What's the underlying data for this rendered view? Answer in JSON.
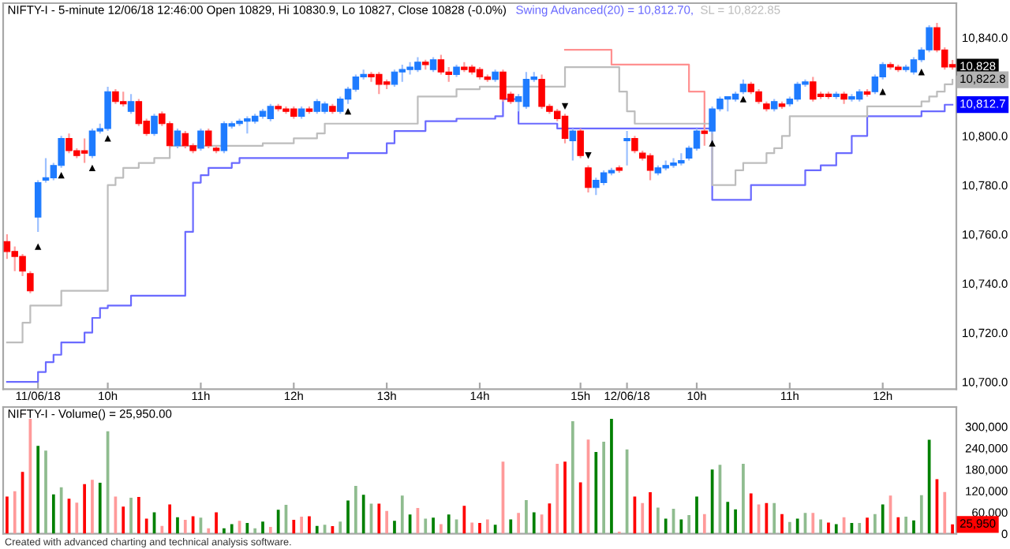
{
  "chart_data": [
    {
      "type": "candlestick",
      "title": "NIFTY-I - 5-minute 12/06/18 12:46:00 Open 10829, Hi 10830.9, Lo 10827, Close 10828 (-0.0%)",
      "categories": [
        null,
        null,
        null,
        null,
        "11/06/18",
        null,
        null,
        null,
        null,
        null,
        null,
        null,
        null,
        "10h",
        null,
        null,
        null,
        null,
        null,
        null,
        null,
        null,
        null,
        null,
        null,
        "11h",
        null,
        null,
        null,
        null,
        null,
        null,
        null,
        null,
        null,
        null,
        null,
        "12h",
        null,
        null,
        null,
        null,
        null,
        null,
        null,
        null,
        null,
        null,
        null,
        "13h",
        null,
        null,
        null,
        null,
        null,
        null,
        null,
        null,
        null,
        null,
        null,
        "14h",
        null,
        null,
        null,
        null,
        null,
        null,
        null,
        null,
        null,
        null,
        null,
        null,
        "15h",
        null,
        null,
        null,
        null,
        null,
        "12/06/18",
        null,
        null,
        null,
        null,
        null,
        null,
        null,
        null,
        "10h",
        null,
        null,
        null,
        null,
        null,
        null,
        null,
        null,
        null,
        null,
        null,
        "11h",
        null,
        null,
        null,
        null,
        null,
        null,
        null,
        null,
        null,
        null,
        null,
        "12h",
        null,
        null,
        null,
        null,
        null,
        null,
        null,
        null,
        null
      ],
      "ohlc": [
        [
          10757,
          10760,
          10750,
          10753
        ],
        [
          10753,
          10755,
          10745,
          10751
        ],
        [
          10751,
          10752,
          10743,
          10745
        ],
        [
          10744,
          10745,
          10736,
          10737
        ],
        [
          10767,
          10782,
          10761,
          10781
        ],
        [
          10782,
          10791,
          10781,
          10783
        ],
        [
          10783,
          10789,
          10782,
          10788
        ],
        [
          10788,
          10800,
          10787,
          10799
        ],
        [
          10799,
          10801,
          10793,
          10794
        ],
        [
          10794,
          10795,
          10791,
          10792
        ],
        [
          10794,
          10799,
          10789,
          10793
        ],
        [
          10792,
          10803,
          10791,
          10802
        ],
        [
          10802,
          10805,
          10801,
          10803
        ],
        [
          10803,
          10820,
          10802,
          10818
        ],
        [
          10818,
          10819,
          10813,
          10814
        ],
        [
          10814,
          10818,
          10812,
          10813
        ],
        [
          10810,
          10817,
          10809,
          10814
        ],
        [
          10814,
          10815,
          10804,
          10805
        ],
        [
          10806,
          10807,
          10800,
          10801
        ],
        [
          10801,
          10809,
          10800,
          10808
        ],
        [
          10809,
          10810,
          10804,
          10805
        ],
        [
          10805,
          10806,
          10795,
          10796
        ],
        [
          10796,
          10803,
          10795,
          10802
        ],
        [
          10801,
          10802,
          10795,
          10796
        ],
        [
          10796,
          10797,
          10793,
          10794
        ],
        [
          10795,
          10803,
          10794,
          10802
        ],
        [
          10802,
          10803,
          10795,
          10796
        ],
        [
          10795,
          10796,
          10793,
          10794
        ],
        [
          10794,
          10806,
          10793,
          10805
        ],
        [
          10804,
          10806,
          10803,
          10805
        ],
        [
          10805,
          10807,
          10804,
          10806
        ],
        [
          10806,
          10808,
          10801,
          10807
        ],
        [
          10806,
          10809,
          10805,
          10808
        ],
        [
          10808,
          10811,
          10807,
          10810
        ],
        [
          10807,
          10813,
          10806,
          10812
        ],
        [
          10812,
          10813,
          10810,
          10811
        ],
        [
          10811,
          10812,
          10809,
          10810
        ],
        [
          10811,
          10812,
          10807,
          10808
        ],
        [
          10808,
          10812,
          10807,
          10811
        ],
        [
          10811,
          10812,
          10809,
          10810
        ],
        [
          10810,
          10815,
          10809,
          10814
        ],
        [
          10810,
          10814,
          10809,
          10813
        ],
        [
          10812,
          10813,
          10809,
          10810
        ],
        [
          10810,
          10816,
          10809,
          10815
        ],
        [
          10815,
          10820,
          10813,
          10819
        ],
        [
          10819,
          10825,
          10818,
          10824
        ],
        [
          10824,
          10827,
          10823,
          10825
        ],
        [
          10825,
          10826,
          10822,
          10824
        ],
        [
          10825,
          10826,
          10817,
          10821
        ],
        [
          10822,
          10823,
          10819,
          10821
        ],
        [
          10821,
          10827,
          10820,
          10826
        ],
        [
          10826,
          10829,
          10822,
          10827
        ],
        [
          10827,
          10830,
          10825,
          10828
        ],
        [
          10827,
          10832,
          10826,
          10830
        ],
        [
          10830,
          10831,
          10827,
          10829
        ],
        [
          10827,
          10832,
          10826,
          10831
        ],
        [
          10831,
          10833,
          10825,
          10826
        ],
        [
          10826,
          10828,
          10822,
          10825
        ],
        [
          10825,
          10829,
          10824,
          10828
        ],
        [
          10828,
          10830,
          10826,
          10827
        ],
        [
          10828,
          10829,
          10825,
          10826
        ],
        [
          10827,
          10828,
          10823,
          10824
        ],
        [
          10824,
          10825,
          10822,
          10823
        ],
        [
          10823,
          10827,
          10822,
          10826
        ],
        [
          10826,
          10827,
          10814,
          10815
        ],
        [
          10817,
          10818,
          10813,
          10814
        ],
        [
          10814,
          10817,
          10810,
          10816
        ],
        [
          10812,
          10826,
          10811,
          10823
        ],
        [
          10823,
          10826,
          10822,
          10824
        ],
        [
          10823,
          10825,
          10811,
          10812
        ],
        [
          10812,
          10813,
          10809,
          10810
        ],
        [
          10810,
          10811,
          10806,
          10807
        ],
        [
          10808,
          10809,
          10797,
          10799
        ],
        [
          10798,
          10803,
          10790,
          10802
        ],
        [
          10802,
          10803,
          10791,
          10792
        ],
        [
          10787,
          10788,
          10777,
          10779
        ],
        [
          10779,
          10783,
          10776,
          10782
        ],
        [
          10781,
          10786,
          10780,
          10785
        ],
        [
          10785,
          10787,
          10784,
          10786
        ],
        [
          10787,
          10788,
          10785,
          10786
        ],
        [
          10798,
          10802,
          10788,
          10799
        ],
        [
          10799,
          10800,
          10793,
          10794
        ],
        [
          10793,
          10794,
          10790,
          10791
        ],
        [
          10792,
          10793,
          10782,
          10786
        ],
        [
          10785,
          10788,
          10784,
          10787
        ],
        [
          10787,
          10790,
          10786,
          10788
        ],
        [
          10788,
          10791,
          10787,
          10789
        ],
        [
          10789,
          10793,
          10788,
          10790
        ],
        [
          10791,
          10796,
          10790,
          10795
        ],
        [
          10795,
          10803,
          10794,
          10802
        ],
        [
          10802,
          10804,
          10796,
          10801
        ],
        [
          10802,
          10812,
          10801,
          10811
        ],
        [
          10811,
          10816,
          10810,
          10815
        ],
        [
          10815,
          10816,
          10810,
          10816
        ],
        [
          10815,
          10818,
          10814,
          10817
        ],
        [
          10818,
          10823,
          10817,
          10821
        ],
        [
          10821,
          10822,
          10817,
          10818
        ],
        [
          10818,
          10819,
          10813,
          10814
        ],
        [
          10813,
          10814,
          10810,
          10811
        ],
        [
          10811,
          10815,
          10810,
          10814
        ],
        [
          10813,
          10814,
          10811,
          10812
        ],
        [
          10813,
          10816,
          10812,
          10815
        ],
        [
          10815,
          10822,
          10814,
          10821
        ],
        [
          10821,
          10823,
          10820,
          10822
        ],
        [
          10822,
          10824,
          10814,
          10815
        ],
        [
          10817,
          10818,
          10815,
          10816
        ],
        [
          10817,
          10818,
          10815,
          10816
        ],
        [
          10816,
          10818,
          10815,
          10817
        ],
        [
          10817,
          10818,
          10813,
          10815
        ],
        [
          10815,
          10817,
          10814,
          10816
        ],
        [
          10815,
          10819,
          10814,
          10818
        ],
        [
          10818,
          10819,
          10816,
          10817
        ],
        [
          10818,
          10825,
          10817,
          10824
        ],
        [
          10824,
          10830,
          10823,
          10829
        ],
        [
          10829,
          10830,
          10827,
          10828
        ],
        [
          10828,
          10829,
          10826,
          10827
        ],
        [
          10827,
          10829,
          10826,
          10828
        ],
        [
          10826,
          10832,
          10825,
          10831
        ],
        [
          10831,
          10836,
          10830,
          10835
        ],
        [
          10835,
          10845,
          10834,
          10844
        ],
        [
          10844,
          10846,
          10834,
          10835
        ],
        [
          10835,
          10836,
          10827,
          10828
        ],
        [
          10829,
          10830.9,
          10827,
          10828
        ]
      ],
      "series": [
        {
          "type": "step",
          "color": "#ff9090",
          "values": [
            null,
            null,
            null,
            null,
            null,
            null,
            null,
            null,
            null,
            null,
            null,
            null,
            null,
            null,
            null,
            null,
            null,
            null,
            null,
            null,
            null,
            null,
            null,
            null,
            null,
            null,
            null,
            null,
            null,
            null,
            null,
            null,
            null,
            null,
            null,
            null,
            null,
            null,
            null,
            null,
            null,
            null,
            null,
            null,
            null,
            null,
            null,
            null,
            null,
            null,
            null,
            null,
            null,
            null,
            null,
            null,
            null,
            null,
            null,
            null,
            null,
            null,
            null,
            null,
            null,
            null,
            null,
            null,
            null,
            null,
            null,
            null,
            10835,
            10835,
            10835,
            10835,
            10835,
            10835,
            10829,
            10829,
            10829,
            10829,
            10829,
            10829,
            10829,
            10829,
            10829,
            10829,
            10818,
            10818,
            10803,
            null,
            null,
            null,
            null,
            null,
            null,
            null,
            null,
            null,
            null,
            null,
            null,
            null,
            null,
            null,
            null,
            null,
            null,
            null,
            null,
            null,
            null,
            null,
            null,
            null,
            null,
            null,
            null,
            null,
            null,
            null,
            null
          ]
        },
        {
          "type": "step",
          "name": "Swing Advanced(20) = 10,812.70,",
          "color": "#6a6aff",
          "values": [
            10700,
            10700,
            10700,
            10700,
            10704,
            10708,
            10711,
            10716,
            10716,
            10716,
            10720,
            10726,
            10730,
            10731,
            10731,
            10731,
            10735,
            10735,
            10735,
            10735,
            10735,
            10735,
            10735,
            10761,
            10781,
            10784,
            10787,
            10787,
            10787,
            10789,
            10791,
            10791,
            10791,
            10791,
            10791,
            10791,
            10791,
            10791,
            10791,
            10791,
            10791,
            10791,
            10791,
            10791,
            10793,
            10793,
            10793,
            10793,
            10793,
            10797,
            10802,
            10802,
            10802,
            10802,
            10806,
            10806,
            10806,
            10806,
            10807,
            10807,
            10807,
            10807,
            10807,
            10808,
            10815,
            10815,
            10805,
            10805,
            10805,
            10805,
            10805,
            10803,
            10803,
            10803,
            10803,
            10803,
            10803,
            10803,
            10803,
            10803,
            10803,
            10803,
            10803,
            10803,
            10803,
            10803,
            10803,
            10803,
            10803,
            10803,
            10803,
            10774,
            10774,
            10774,
            10774,
            10774,
            10780,
            10780,
            10780,
            10780,
            10780,
            10780,
            10780,
            10786,
            10786,
            10788,
            10788,
            10793,
            10793,
            10800,
            10800,
            10808,
            10808,
            10808,
            10808,
            10808,
            10808,
            10808,
            10810,
            10810,
            10810,
            10812.7,
            10812.7
          ]
        },
        {
          "type": "step",
          "name": "SL = 10,822.85",
          "color": "#bdbdbd",
          "values": [
            10716,
            10716,
            10724,
            10731,
            10731,
            10731,
            10731,
            10737,
            10737,
            10737,
            10737,
            10737,
            10737,
            10780,
            10783,
            10787,
            10787,
            10789,
            10789,
            10791,
            10791,
            10796,
            10796,
            10796,
            10796,
            10796,
            10796,
            10796,
            10796,
            10796,
            10796,
            10796,
            10796,
            10797,
            10797,
            10797,
            10797,
            10799,
            10799,
            10799,
            10801,
            10805,
            10805,
            10805,
            10805,
            10805,
            10805,
            10805,
            10805,
            10805,
            10805,
            10805,
            10805,
            10816,
            10816,
            10816,
            10816,
            10816,
            10819,
            10819,
            10819,
            10820,
            10820,
            10820,
            10820,
            10820,
            10820,
            10820,
            10820,
            10820,
            10820,
            10820,
            10828,
            10828,
            10828,
            10828,
            10828,
            10828,
            10828,
            10818,
            10810,
            10805,
            10805,
            10805,
            10805,
            10805,
            10805,
            10805,
            10805,
            10805,
            10805,
            10780,
            10780,
            10780,
            10786,
            10789,
            10789,
            10789,
            10793,
            10795,
            10800,
            10808,
            10808,
            10808,
            10808,
            10808,
            10808,
            10808,
            10808,
            10808,
            10808,
            10812,
            10812,
            10812,
            10812,
            10812,
            10812,
            10812,
            10814,
            10816,
            10818,
            10821,
            10822.85
          ]
        },
        {
          "type": "scatter",
          "marker": "triangle",
          "color": "#000000",
          "values": [
            null,
            null,
            null,
            null,
            10755,
            null,
            null,
            10784,
            null,
            null,
            null,
            10787,
            null,
            10799,
            null,
            null,
            null,
            null,
            null,
            null,
            null,
            null,
            null,
            null,
            null,
            null,
            null,
            null,
            null,
            null,
            null,
            null,
            null,
            null,
            null,
            null,
            null,
            null,
            null,
            null,
            null,
            null,
            null,
            null,
            10810,
            null,
            null,
            null,
            null,
            null,
            null,
            null,
            null,
            null,
            null,
            null,
            null,
            null,
            null,
            null,
            null,
            null,
            null,
            null,
            null,
            null,
            null,
            null,
            null,
            null,
            null,
            null,
            null,
            null,
            null,
            null,
            null,
            null,
            null,
            null,
            null,
            null,
            null,
            null,
            null,
            null,
            null,
            null,
            null,
            null,
            null,
            10797,
            null,
            null,
            null,
            10815,
            null,
            null,
            null,
            null,
            null,
            null,
            null,
            null,
            null,
            null,
            null,
            null,
            null,
            null,
            null,
            null,
            null,
            10818,
            null,
            null,
            null,
            null,
            10826,
            null,
            null,
            null,
            null
          ]
        },
        {
          "type": "scatter",
          "marker": "triangle_down",
          "color": "#000000",
          "values": [
            null,
            null,
            null,
            null,
            null,
            null,
            null,
            null,
            null,
            null,
            null,
            null,
            null,
            null,
            null,
            null,
            null,
            null,
            null,
            null,
            null,
            null,
            null,
            null,
            null,
            null,
            null,
            null,
            null,
            null,
            null,
            null,
            null,
            null,
            null,
            null,
            null,
            null,
            null,
            null,
            null,
            null,
            null,
            null,
            null,
            null,
            null,
            null,
            null,
            null,
            null,
            null,
            null,
            null,
            null,
            null,
            null,
            null,
            null,
            null,
            null,
            null,
            null,
            null,
            null,
            null,
            null,
            null,
            null,
            null,
            null,
            null,
            10812,
            null,
            null,
            10792,
            null,
            null,
            null,
            null,
            null,
            null,
            null,
            null,
            null,
            null,
            null,
            null,
            null,
            null,
            null,
            null,
            null,
            null,
            null,
            null,
            null,
            null,
            null,
            null,
            null,
            null,
            null,
            null,
            null,
            null,
            null,
            null,
            null,
            null,
            null,
            null,
            null,
            null,
            null,
            null,
            null,
            null,
            null,
            null,
            null,
            null,
            null
          ]
        }
      ],
      "ylim": [
        10697,
        10854
      ],
      "yticks": [
        {
          "value": 10700,
          "label": "10,700.0"
        },
        {
          "value": 10720,
          "label": "10,720.0"
        },
        {
          "value": 10740,
          "label": "10,740.0"
        },
        {
          "value": 10760,
          "label": "10,760.0"
        },
        {
          "value": 10780,
          "label": "10,780.0"
        },
        {
          "value": 10800,
          "label": "10,800.0"
        },
        {
          "value": 10840,
          "label": "10,840.0"
        }
      ],
      "annotations": [
        "10,828",
        "10,822.8",
        "10,812.7"
      ]
    },
    {
      "type": "bar",
      "title": "NIFTY-I - Volume() = 25,950.00",
      "categories": [
        null,
        null,
        null,
        null,
        null,
        null,
        null,
        null,
        null,
        null,
        null,
        null,
        null,
        null,
        null,
        null,
        null,
        null,
        null,
        null,
        null,
        null,
        null,
        null,
        null,
        null,
        null,
        null,
        null,
        null,
        null,
        null,
        null,
        null,
        null,
        null,
        null,
        null,
        null,
        null,
        null,
        null,
        null,
        null,
        null,
        null,
        null,
        null,
        null,
        null,
        null,
        null,
        null,
        null,
        null,
        null,
        null,
        null,
        null,
        null,
        null,
        null,
        null,
        null,
        null,
        null,
        null,
        null,
        null,
        null,
        null,
        null,
        null,
        null,
        null,
        null,
        null,
        null,
        null,
        null,
        null,
        null,
        null,
        null,
        null,
        null,
        null,
        null,
        null,
        null,
        null,
        null,
        null,
        null,
        null,
        null,
        null,
        null,
        null,
        null,
        null,
        null,
        null,
        null,
        null,
        null,
        null,
        null,
        null,
        null,
        null,
        null,
        null,
        null,
        null,
        null,
        null,
        null,
        null,
        null,
        null,
        null,
        null
      ],
      "values": [
        104000,
        119000,
        173000,
        322000,
        246000,
        233000,
        110000,
        130000,
        98000,
        87000,
        139000,
        151000,
        143000,
        287000,
        104000,
        76000,
        101000,
        103000,
        42000,
        60000,
        22000,
        82000,
        46000,
        39000,
        49000,
        45000,
        15000,
        60000,
        15000,
        27000,
        36000,
        30000,
        15000,
        34000,
        19000,
        67000,
        81000,
        39000,
        48000,
        49000,
        22000,
        25000,
        21000,
        34000,
        93000,
        134000,
        109000,
        84000,
        84000,
        64000,
        36000,
        107000,
        54000,
        72000,
        42000,
        45000,
        27000,
        54000,
        40000,
        78000,
        31000,
        30000,
        40000,
        25000,
        202000,
        40000,
        58000,
        94000,
        60000,
        54000,
        85000,
        196000,
        202000,
        315000,
        144000,
        264000,
        229000,
        258000,
        322000,
        6000,
        236000,
        104000,
        86000,
        116000,
        73000,
        42000,
        70000,
        40000,
        52000,
        104000,
        55000,
        180000,
        193000,
        89000,
        68000,
        196000,
        113000,
        82000,
        86000,
        86000,
        55000,
        33000,
        42000,
        58000,
        58000,
        40000,
        31000,
        27000,
        46000,
        30000,
        30000,
        45000,
        55000,
        82000,
        107000,
        46000,
        48000,
        37000,
        108000,
        263000,
        153000,
        117000,
        25950
      ],
      "colors": [
        "#ff0000",
        "#ff9a9a",
        "#ff0000",
        "#ff9a9a",
        "#008000",
        "#8fbc8f",
        "#008000",
        "#8fbc8f",
        "#ff0000",
        "#ff9a9a",
        "#ff0000",
        "#ff9a9a",
        "#008000",
        "#8fbc8f",
        "#ff9a9a",
        "#ff0000",
        "#8fbc8f",
        "#ff0000",
        "#ff0000",
        "#008000",
        "#ff9a9a",
        "#ff0000",
        "#008000",
        "#ff9a9a",
        "#ff0000",
        "#8fbc8f",
        "#ff9a9a",
        "#ff0000",
        "#008000",
        "#008000",
        "#ff9a9a",
        "#008000",
        "#8fbc8f",
        "#008000",
        "#ff9a9a",
        "#008000",
        "#8fbc8f",
        "#ff0000",
        "#ff9a9a",
        "#ff0000",
        "#008000",
        "#8fbc8f",
        "#ff0000",
        "#8fbc8f",
        "#008000",
        "#8fbc8f",
        "#008000",
        "#8fbc8f",
        "#ff0000",
        "#ff9a9a",
        "#008000",
        "#8fbc8f",
        "#008000",
        "#ff9a9a",
        "#8fbc8f",
        "#008000",
        "#ff9a9a",
        "#008000",
        "#8fbc8f",
        "#ff0000",
        "#ff9a9a",
        "#ff0000",
        "#ff9a9a",
        "#008000",
        "#ff9a9a",
        "#008000",
        "#ff9a9a",
        "#8fbc8f",
        "#008000",
        "#ff9a9a",
        "#ff0000",
        "#ff9a9a",
        "#ff0000",
        "#8fbc8f",
        "#ff0000",
        "#ff9a9a",
        "#008000",
        "#8fbc8f",
        "#008000",
        "#ff9a9a",
        "#8fbc8f",
        "#ff0000",
        "#ff9a9a",
        "#ff0000",
        "#8fbc8f",
        "#008000",
        "#8fbc8f",
        "#008000",
        "#8fbc8f",
        "#008000",
        "#ff9a9a",
        "#008000",
        "#8fbc8f",
        "#008000",
        "#008000",
        "#8fbc8f",
        "#ff0000",
        "#ff9a9a",
        "#ff0000",
        "#8fbc8f",
        "#ff0000",
        "#8fbc8f",
        "#008000",
        "#8fbc8f",
        "#ff9a9a",
        "#8fbc8f",
        "#ff0000",
        "#008000",
        "#ff9a9a",
        "#008000",
        "#8fbc8f",
        "#ff0000",
        "#8fbc8f",
        "#008000",
        "#ff9a9a",
        "#ff0000",
        "#8fbc8f",
        "#008000",
        "#8fbc8f",
        "#008000",
        "#ff0000",
        "#ff9a9a",
        "#ff0000"
      ],
      "ylim": [
        0,
        355000
      ],
      "yticks": [
        0,
        {
          "value": 60000,
          "label": "60,000"
        },
        {
          "value": 120000,
          "label": "120,000"
        },
        {
          "value": 180000,
          "label": "180,000"
        },
        {
          "value": 240000,
          "label": "240,000"
        },
        {
          "value": 300000,
          "label": "300,000"
        }
      ],
      "tick_labels": "y",
      "annotations": [
        "25,950",
        "Created with advanced charting and technical analysis software."
      ]
    }
  ]
}
